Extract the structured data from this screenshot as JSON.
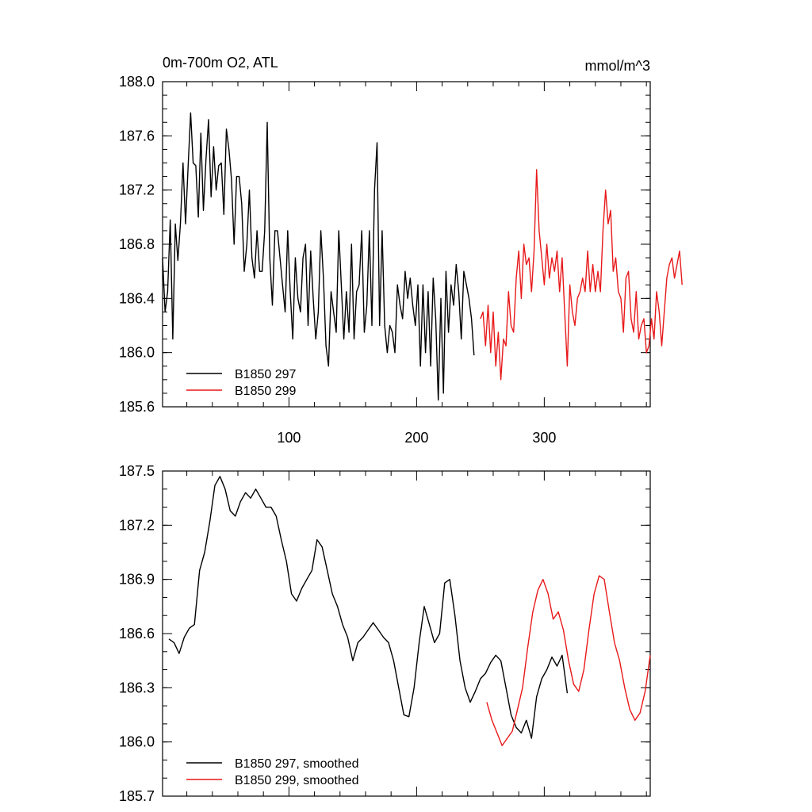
{
  "chart_data": [
    {
      "type": "line",
      "panel": "top",
      "title_left": "0m-700m O2, ATL",
      "title_right": "mmol/m^3",
      "xlim": [
        1,
        383
      ],
      "ylim": [
        185.6,
        188.0
      ],
      "y_ticks": [
        185.6,
        186.0,
        186.4,
        186.8,
        187.2,
        187.6,
        188.0
      ],
      "y_tick_labels": [
        "185.6",
        "186.0",
        "186.4",
        "186.8",
        "187.2",
        "187.6",
        "188.0"
      ],
      "y_minor_step": 0.1,
      "x_ticks": [
        100,
        200,
        300
      ],
      "x_tick_labels": [
        "100",
        "200",
        "300"
      ],
      "x_minor_step": 20,
      "legend_position": "bottom-left",
      "series": [
        {
          "name": "B1850 297",
          "color": "#000000",
          "x_start": 1,
          "x_step": 2,
          "values": [
            186.7,
            186.3,
            186.45,
            186.98,
            186.1,
            186.95,
            186.68,
            186.95,
            187.4,
            186.95,
            187.37,
            187.77,
            187.4,
            187.38,
            187.0,
            187.62,
            187.05,
            187.42,
            187.72,
            187.15,
            187.52,
            187.2,
            187.38,
            187.4,
            187.02,
            187.65,
            187.5,
            187.28,
            186.8,
            187.3,
            187.3,
            187.1,
            186.6,
            186.8,
            187.2,
            186.7,
            186.55,
            186.9,
            186.6,
            186.6,
            186.9,
            187.7,
            186.7,
            186.35,
            186.9,
            186.9,
            186.7,
            186.5,
            186.3,
            186.9,
            186.45,
            186.1,
            186.7,
            186.4,
            186.3,
            186.7,
            186.8,
            186.2,
            186.75,
            186.4,
            186.1,
            186.3,
            186.9,
            186.55,
            186.05,
            185.9,
            186.45,
            186.3,
            186.15,
            186.9,
            186.5,
            186.1,
            186.45,
            186.15,
            186.8,
            186.1,
            186.45,
            186.5,
            186.9,
            186.15,
            186.35,
            186.9,
            186.2,
            187.2,
            187.55,
            186.2,
            186.9,
            186.2,
            186.0,
            186.2,
            186.15,
            186.0,
            186.5,
            186.35,
            186.25,
            186.6,
            186.4,
            186.55,
            186.35,
            186.2,
            186.5,
            185.9,
            186.5,
            186.0,
            186.45,
            185.9,
            186.55,
            186.25,
            185.65,
            186.4,
            185.7,
            186.6,
            186.15,
            186.5,
            186.35,
            186.65,
            186.45,
            186.1,
            186.6,
            186.5,
            186.4,
            186.25,
            185.98
          ]
        },
        {
          "name": "B1850 299",
          "color": "#e8191a",
          "x_start": 250,
          "x_step": 2,
          "values": [
            186.25,
            186.3,
            186.05,
            186.35,
            186.0,
            186.3,
            185.9,
            186.15,
            185.8,
            186.1,
            186.05,
            186.45,
            186.2,
            186.15,
            186.55,
            186.75,
            186.4,
            186.8,
            186.65,
            186.7,
            186.45,
            186.75,
            187.35,
            186.9,
            186.7,
            186.5,
            186.8,
            186.55,
            186.7,
            186.6,
            186.75,
            186.45,
            186.7,
            186.3,
            185.9,
            186.5,
            186.3,
            186.2,
            186.4,
            186.45,
            186.55,
            186.45,
            186.75,
            186.45,
            186.65,
            186.45,
            186.6,
            186.45,
            186.9,
            187.2,
            186.95,
            187.05,
            186.6,
            186.7,
            186.45,
            186.4,
            186.15,
            186.55,
            186.6,
            186.25,
            186.15,
            186.45,
            186.1,
            186.2,
            186.25,
            186.0,
            186.05,
            186.25,
            186.1,
            186.45,
            186.3,
            186.05,
            186.3,
            186.55,
            186.65,
            186.7,
            186.55,
            186.65,
            186.75,
            186.5
          ]
        }
      ]
    },
    {
      "type": "line",
      "panel": "bottom",
      "xlim": [
        1,
        383
      ],
      "ylim": [
        185.7,
        187.5
      ],
      "y_ticks": [
        185.7,
        186.0,
        186.3,
        186.6,
        186.9,
        187.2,
        187.5
      ],
      "y_tick_labels": [
        "185.7",
        "186.0",
        "186.3",
        "186.6",
        "186.9",
        "187.2",
        "187.5"
      ],
      "y_minor_step": 0.1,
      "x_ticks": [
        100,
        200,
        300
      ],
      "x_minor_step": 20,
      "legend_position": "bottom-left",
      "series": [
        {
          "name": "B1850 297, smoothed",
          "color": "#000000",
          "x_start": 6,
          "x_step": 4,
          "values": [
            186.57,
            186.55,
            186.49,
            186.58,
            186.63,
            186.65,
            186.95,
            187.05,
            187.22,
            187.42,
            187.47,
            187.4,
            187.28,
            187.25,
            187.33,
            187.38,
            187.35,
            187.4,
            187.35,
            187.3,
            187.3,
            187.25,
            187.12,
            187.0,
            186.82,
            186.78,
            186.85,
            186.9,
            186.95,
            187.12,
            187.08,
            186.95,
            186.82,
            186.75,
            186.65,
            186.58,
            186.45,
            186.55,
            186.58,
            186.62,
            186.66,
            186.62,
            186.58,
            186.55,
            186.45,
            186.3,
            186.15,
            186.14,
            186.3,
            186.55,
            186.75,
            186.65,
            186.55,
            186.6,
            186.88,
            186.9,
            186.7,
            186.45,
            186.3,
            186.22,
            186.28,
            186.35,
            186.38,
            186.44,
            186.48,
            186.45,
            186.3,
            186.15,
            186.08,
            186.05,
            186.12,
            186.02,
            186.25,
            186.35,
            186.4,
            186.47,
            186.42,
            186.48,
            186.27
          ]
        },
        {
          "name": "B1850 299, smoothed",
          "color": "#e8191a",
          "x_start": 255,
          "x_step": 4,
          "values": [
            186.22,
            186.12,
            186.05,
            185.98,
            186.02,
            186.06,
            186.18,
            186.3,
            186.52,
            186.72,
            186.84,
            186.9,
            186.82,
            186.68,
            186.72,
            186.62,
            186.45,
            186.32,
            186.28,
            186.4,
            186.62,
            186.82,
            186.92,
            186.9,
            186.72,
            186.55,
            186.45,
            186.3,
            186.18,
            186.12,
            186.16,
            186.28,
            186.48
          ]
        }
      ]
    }
  ]
}
